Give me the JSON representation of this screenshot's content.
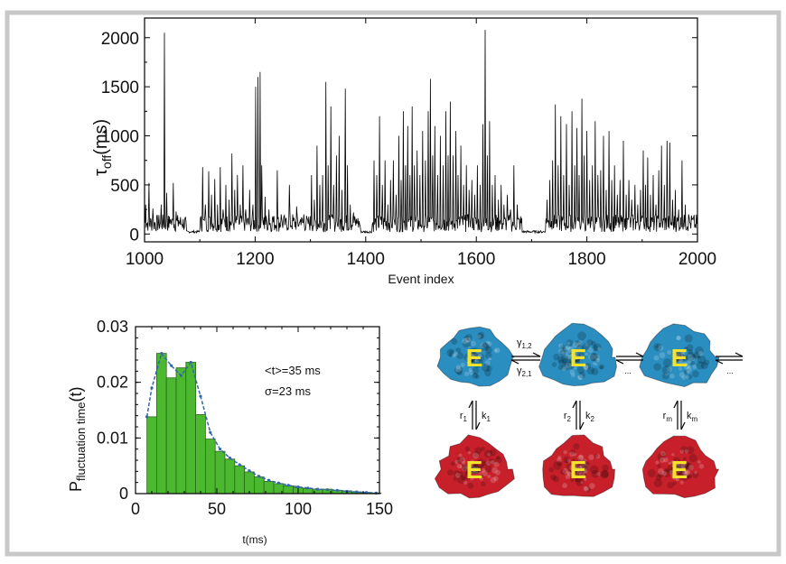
{
  "chart_data": [
    {
      "type": "line",
      "xlabel": "Event index",
      "ylabel_main": "τ",
      "ylabel_sub": "off",
      "ylabel_suffix": "(ms)",
      "xlim": [
        1000,
        2000
      ],
      "ylim": [
        -80,
        2200
      ],
      "xticks": [
        1000,
        1200,
        1400,
        1600,
        1800,
        2000
      ],
      "yticks": [
        0,
        500,
        1000,
        1500,
        2000
      ],
      "xtick_labels": [
        "1000",
        "1200",
        "1400",
        "1600",
        "1800",
        "2000"
      ],
      "ytick_labels": [
        "0",
        "500",
        "1000",
        "1500",
        "2000"
      ],
      "series": [
        {
          "color": "#000000",
          "peaks": [
            [
              1002,
              300
            ],
            [
              1008,
              520
            ],
            [
              1015,
              260
            ],
            [
              1022,
              180
            ],
            [
              1030,
              300
            ],
            [
              1036,
              2050
            ],
            [
              1040,
              420
            ],
            [
              1047,
              150
            ],
            [
              1052,
              520
            ],
            [
              1057,
              230
            ],
            [
              1062,
              140
            ],
            [
              1068,
              90
            ],
            [
              1075,
              130
            ],
            [
              1105,
              680
            ],
            [
              1110,
              300
            ],
            [
              1116,
              640
            ],
            [
              1121,
              400
            ],
            [
              1127,
              560
            ],
            [
              1132,
              300
            ],
            [
              1137,
              680
            ],
            [
              1142,
              250
            ],
            [
              1147,
              500
            ],
            [
              1153,
              350
            ],
            [
              1158,
              820
            ],
            [
              1163,
              450
            ],
            [
              1168,
              600
            ],
            [
              1173,
              300
            ],
            [
              1178,
              700
            ],
            [
              1183,
              250
            ],
            [
              1190,
              450
            ],
            [
              1196,
              300
            ],
            [
              1201,
              1500
            ],
            [
              1205,
              1600
            ],
            [
              1209,
              1650
            ],
            [
              1212,
              700
            ],
            [
              1218,
              380
            ],
            [
              1225,
              250
            ],
            [
              1232,
              180
            ],
            [
              1240,
              650
            ],
            [
              1247,
              200
            ],
            [
              1255,
              150
            ],
            [
              1262,
              500
            ],
            [
              1268,
              200
            ],
            [
              1275,
              280
            ],
            [
              1282,
              150
            ],
            [
              1288,
              200
            ],
            [
              1295,
              150
            ],
            [
              1302,
              600
            ],
            [
              1307,
              350
            ],
            [
              1312,
              900
            ],
            [
              1317,
              500
            ],
            [
              1322,
              600
            ],
            [
              1328,
              1550
            ],
            [
              1332,
              700
            ],
            [
              1337,
              1300
            ],
            [
              1342,
              500
            ],
            [
              1347,
              800
            ],
            [
              1352,
              1000
            ],
            [
              1357,
              450
            ],
            [
              1363,
              1480
            ],
            [
              1367,
              700
            ],
            [
              1372,
              300
            ],
            [
              1378,
              220
            ],
            [
              1385,
              120
            ],
            [
              1390,
              80
            ],
            [
              1415,
              750
            ],
            [
              1420,
              600
            ],
            [
              1425,
              1200
            ],
            [
              1430,
              500
            ],
            [
              1435,
              750
            ],
            [
              1440,
              300
            ],
            [
              1445,
              550
            ],
            [
              1450,
              750
            ],
            [
              1455,
              400
            ],
            [
              1460,
              1000
            ],
            [
              1464,
              550
            ],
            [
              1468,
              1250
            ],
            [
              1472,
              700
            ],
            [
              1476,
              1100
            ],
            [
              1480,
              600
            ],
            [
              1484,
              1300
            ],
            [
              1488,
              700
            ],
            [
              1493,
              850
            ],
            [
              1498,
              600
            ],
            [
              1503,
              1050
            ],
            [
              1508,
              750
            ],
            [
              1513,
              1250
            ],
            [
              1517,
              1580
            ],
            [
              1521,
              800
            ],
            [
              1525,
              1100
            ],
            [
              1530,
              600
            ],
            [
              1535,
              1000
            ],
            [
              1540,
              700
            ],
            [
              1545,
              1250
            ],
            [
              1549,
              800
            ],
            [
              1553,
              1350
            ],
            [
              1558,
              800
            ],
            [
              1563,
              1050
            ],
            [
              1567,
              600
            ],
            [
              1572,
              900
            ],
            [
              1577,
              500
            ],
            [
              1582,
              700
            ],
            [
              1587,
              450
            ],
            [
              1592,
              550
            ],
            [
              1597,
              400
            ],
            [
              1602,
              700
            ],
            [
              1607,
              500
            ],
            [
              1612,
              1120
            ],
            [
              1616,
              2080
            ],
            [
              1620,
              800
            ],
            [
              1624,
              1150
            ],
            [
              1629,
              500
            ],
            [
              1634,
              600
            ],
            [
              1640,
              350
            ],
            [
              1645,
              500
            ],
            [
              1650,
              300
            ],
            [
              1656,
              400
            ],
            [
              1662,
              250
            ],
            [
              1668,
              700
            ],
            [
              1674,
              300
            ],
            [
              1680,
              180
            ],
            [
              1728,
              350
            ],
            [
              1733,
              550
            ],
            [
              1738,
              750
            ],
            [
              1743,
              1320
            ],
            [
              1748,
              700
            ],
            [
              1753,
              1200
            ],
            [
              1758,
              600
            ],
            [
              1763,
              1120
            ],
            [
              1768,
              500
            ],
            [
              1773,
              1250
            ],
            [
              1778,
              700
            ],
            [
              1782,
              1080
            ],
            [
              1786,
              600
            ],
            [
              1791,
              1380
            ],
            [
              1795,
              800
            ],
            [
              1800,
              1050
            ],
            [
              1805,
              550
            ],
            [
              1810,
              700
            ],
            [
              1815,
              1150
            ],
            [
              1820,
              600
            ],
            [
              1825,
              650
            ],
            [
              1830,
              1000
            ],
            [
              1835,
              450
            ],
            [
              1840,
              1050
            ],
            [
              1845,
              550
            ],
            [
              1850,
              700
            ],
            [
              1855,
              400
            ],
            [
              1860,
              550
            ],
            [
              1866,
              950
            ],
            [
              1871,
              400
            ],
            [
              1876,
              550
            ],
            [
              1881,
              350
            ],
            [
              1887,
              500
            ],
            [
              1892,
              300
            ],
            [
              1897,
              450
            ],
            [
              1902,
              850
            ],
            [
              1906,
              500
            ],
            [
              1910,
              780
            ],
            [
              1915,
              400
            ],
            [
              1920,
              600
            ],
            [
              1925,
              300
            ],
            [
              1930,
              650
            ],
            [
              1935,
              900
            ],
            [
              1940,
              500
            ],
            [
              1945,
              950
            ],
            [
              1950,
              930
            ],
            [
              1955,
              350
            ],
            [
              1960,
              450
            ],
            [
              1966,
              250
            ],
            [
              1972,
              750
            ],
            [
              1978,
              300
            ],
            [
              1984,
              200
            ],
            [
              1990,
              150
            ],
            [
              1996,
              100
            ]
          ]
        }
      ]
    },
    {
      "type": "bar",
      "xlabel": "t(ms)",
      "ylabel_main": "P",
      "ylabel_sub": "fluctuation time",
      "ylabel_suffix": "(t)",
      "xlim": [
        0,
        150
      ],
      "ylim": [
        0,
        0.03
      ],
      "xticks": [
        0,
        50,
        100,
        150
      ],
      "yticks": [
        0,
        0.01,
        0.02,
        0.03
      ],
      "xtick_labels": [
        "0",
        "50",
        "100",
        "150"
      ],
      "ytick_labels": [
        "0",
        "0.01",
        "0.02",
        "0.03"
      ],
      "annotations": [
        "<t>=35 ms",
        "σ=23 ms"
      ],
      "bin_width": 6,
      "bin_starts": [
        7,
        13,
        19,
        25,
        31,
        37,
        43,
        49,
        55,
        61,
        67,
        73,
        79,
        85,
        91,
        97,
        103,
        109,
        115,
        121,
        127,
        133,
        139,
        145
      ],
      "values": [
        0.0138,
        0.0252,
        0.0208,
        0.0226,
        0.0236,
        0.0142,
        0.0098,
        0.0076,
        0.0062,
        0.005,
        0.0039,
        0.003,
        0.0022,
        0.0018,
        0.0014,
        0.0011,
        0.0009,
        0.0008,
        0.0008,
        0.0006,
        0.0005,
        0.0003,
        0.0002,
        0.0001
      ],
      "bar_color": "#4cb830",
      "fit_color": "#3366aa",
      "fit": {
        "x": [
          7,
          10,
          16,
          22,
          28,
          34,
          40,
          46,
          52,
          58,
          64,
          70,
          76,
          82,
          88,
          94,
          100,
          106,
          112,
          118,
          124,
          130,
          136,
          142,
          148
        ],
        "y": [
          0.0138,
          0.019,
          0.0252,
          0.023,
          0.0212,
          0.0236,
          0.0175,
          0.011,
          0.008,
          0.0064,
          0.0052,
          0.0041,
          0.0031,
          0.0024,
          0.0019,
          0.0015,
          0.0012,
          0.001,
          0.0008,
          0.0007,
          0.0006,
          0.0004,
          0.0003,
          0.0002,
          0.0001
        ]
      }
    }
  ],
  "scheme": {
    "protein_label": "E",
    "top_color": "#2a8ec0",
    "bottom_color": "#c8202a",
    "letter_color": "#f5e22a",
    "rate_forward_main": "γ",
    "rate_forward_sub": "1,2",
    "rate_backward_main": "γ",
    "rate_backward_sub": "2,1",
    "ellipsis": "...",
    "vertical_rates": [
      {
        "r_main": "r",
        "r_sub": "1",
        "k_main": "k",
        "k_sub": "1"
      },
      {
        "r_main": "r",
        "r_sub": "2",
        "k_main": "k",
        "k_sub": "2"
      },
      {
        "r_main": "r",
        "r_sub": "m",
        "k_main": "k",
        "k_sub": "m"
      }
    ]
  }
}
